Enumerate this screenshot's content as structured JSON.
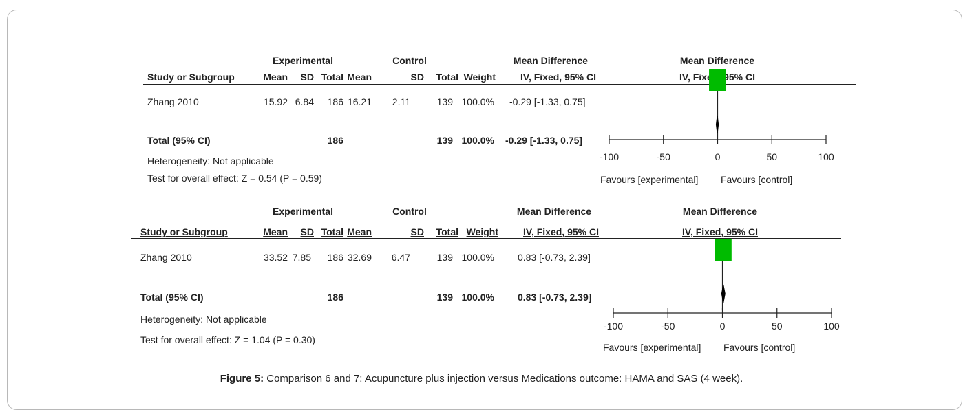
{
  "panels": [
    {
      "group_headers": {
        "experimental": "Experimental",
        "control": "Control",
        "md_left": "Mean Difference",
        "md_right": "Mean Difference"
      },
      "columns": {
        "study": "Study or Subgroup",
        "mean_e": "Mean",
        "sd_e": "SD",
        "total_e": "Total",
        "mean_c": "Mean",
        "sd_c": "SD",
        "total_c": "Total",
        "weight": "Weight",
        "ci_left": "IV, Fixed, 95% CI",
        "ci_right": "IV, Fixed, 95% CI"
      },
      "study_row": {
        "study": "Zhang 2010",
        "mean_e": "15.92",
        "sd_e": "6.84",
        "total_e": "186",
        "mean_c": "16.21",
        "sd_c": "2.11",
        "total_c": "139",
        "weight": "100.0%",
        "ci": "-0.29 [-1.33, 0.75]"
      },
      "total_row": {
        "label": "Total (95% CI)",
        "total_e": "186",
        "total_c": "139",
        "weight": "100.0%",
        "ci": "-0.29 [-1.33, 0.75]"
      },
      "heterogeneity": "Heterogeneity: Not applicable",
      "overall_effect": "Test for overall effect: Z = 0.54 (P = 0.59)",
      "favours_left": "Favours [experimental]",
      "favours_right": "Favours [control]"
    },
    {
      "group_headers": {
        "experimental": "Experimental",
        "control": "Control",
        "md_left": "Mean Difference",
        "md_right": "Mean Difference"
      },
      "columns": {
        "study": "Study or Subgroup",
        "mean_e": "Mean",
        "sd_e": "SD",
        "total_e": "Total",
        "mean_c": "Mean",
        "sd_c": "SD",
        "total_c": "Total",
        "weight": "Weight",
        "ci_left": "IV, Fixed, 95% CI",
        "ci_right": "IV, Fixed, 95% CI"
      },
      "study_row": {
        "study": "Zhang 2010",
        "mean_e": "33.52",
        "sd_e": "7.85",
        "total_e": "186",
        "mean_c": "32.69",
        "sd_c": "6.47",
        "total_c": "139",
        "weight": "100.0%",
        "ci": "0.83 [-0.73, 2.39]"
      },
      "total_row": {
        "label": "Total (95% CI)",
        "total_e": "186",
        "total_c": "139",
        "weight": "100.0%",
        "ci": "0.83 [-0.73, 2.39]"
      },
      "heterogeneity": "Heterogeneity: Not applicable",
      "overall_effect": "Test for overall effect: Z = 1.04 (P = 0.30)",
      "favours_left": "Favours [experimental]",
      "favours_right": "Favours [control]"
    }
  ],
  "caption": {
    "label": "Figure 5:",
    "text": " Comparison 6 and 7: Acupuncture plus  injection  versus Medications outcome: HAMA and SAS (4 week)."
  },
  "chart_data": [
    {
      "type": "forest",
      "xlim": [
        -100,
        100
      ],
      "ticks": [
        -100,
        -50,
        0,
        50,
        100
      ],
      "tick_labels": [
        "-100",
        "-50",
        "0",
        "50",
        "100"
      ],
      "studies": [
        {
          "name": "Zhang 2010",
          "md": -0.29,
          "ci": [
            -1.33,
            0.75
          ],
          "weight": 100.0
        }
      ],
      "pooled": {
        "md": -0.29,
        "ci": [
          -1.33,
          0.75
        ]
      },
      "marker_color": "#00bb00"
    },
    {
      "type": "forest",
      "xlim": [
        -100,
        100
      ],
      "ticks": [
        -100,
        -50,
        0,
        50,
        100
      ],
      "tick_labels": [
        "-100",
        "-50",
        "0",
        "50",
        "100"
      ],
      "studies": [
        {
          "name": "Zhang 2010",
          "md": 0.83,
          "ci": [
            -0.73,
            2.39
          ],
          "weight": 100.0
        }
      ],
      "pooled": {
        "md": 0.83,
        "ci": [
          -0.73,
          2.39
        ]
      },
      "marker_color": "#00bb00"
    }
  ]
}
